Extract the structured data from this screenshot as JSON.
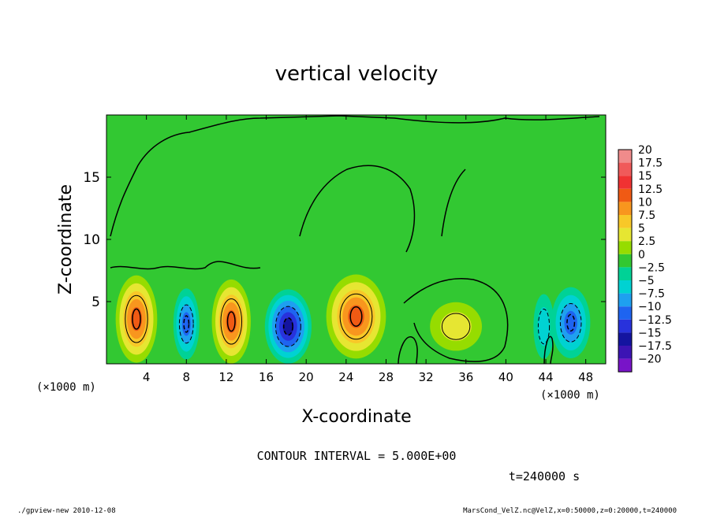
{
  "chart_data": {
    "type": "heatmap",
    "title": "vertical velocity",
    "xlabel": "X-coordinate",
    "ylabel": "Z-coordinate",
    "x_unit_left": "(×1000 m)",
    "x_unit_right": "(×1000 m)",
    "xlim": [
      0,
      50
    ],
    "ylim": [
      0,
      20
    ],
    "x_ticks": [
      4,
      8,
      12,
      16,
      20,
      24,
      28,
      32,
      36,
      40,
      44,
      48
    ],
    "y_ticks": [
      5,
      10,
      15
    ],
    "contour_interval_text": "CONTOUR INTERVAL = 5.000E+00",
    "time_text": "t=240000 s",
    "colorbar": {
      "levels": [
        "20",
        "17.5",
        "15",
        "12.5",
        "10",
        "7.5",
        "5",
        "2.5",
        "0",
        "−2.5",
        "−5",
        "−7.5",
        "−10",
        "−12.5",
        "−15",
        "−17.5",
        "−20"
      ],
      "colors": [
        "#f08b8b",
        "#f05a5a",
        "#f03232",
        "#f05a14",
        "#f8961e",
        "#f8c828",
        "#e6e632",
        "#96dc00",
        "#32c832",
        "#00d296",
        "#00d2d2",
        "#1ea0f0",
        "#1e64f0",
        "#2832dc",
        "#1414a0",
        "#3c14b4",
        "#7814c8"
      ]
    },
    "features": [
      {
        "x": 3.0,
        "z": 3.6,
        "w": 13,
        "sx": 1.6,
        "sz": 2.7
      },
      {
        "x": 8.0,
        "z": 3.2,
        "w": -10,
        "sx": 1.0,
        "sz": 2.2
      },
      {
        "x": 12.5,
        "z": 3.4,
        "w": 13,
        "sx": 1.5,
        "sz": 2.6
      },
      {
        "x": 18.2,
        "z": 3.0,
        "w": -14,
        "sx": 1.8,
        "sz": 2.3
      },
      {
        "x": 25.0,
        "z": 3.8,
        "w": 12,
        "sx": 2.3,
        "sz": 2.6
      },
      {
        "x": 35.0,
        "z": 3.0,
        "w": 6,
        "sx": 2.0,
        "sz": 1.5
      },
      {
        "x": 43.8,
        "z": 3.0,
        "w": -4,
        "sx": 0.8,
        "sz": 2.0
      },
      {
        "x": 46.5,
        "z": 3.3,
        "w": -11,
        "sx": 1.5,
        "sz": 2.2
      }
    ]
  },
  "footer": {
    "left": "./gpview-new   2010-12-08",
    "right": "MarsCond_VelZ.nc@VelZ,x=0:50000,z=0:20000,t=240000"
  }
}
